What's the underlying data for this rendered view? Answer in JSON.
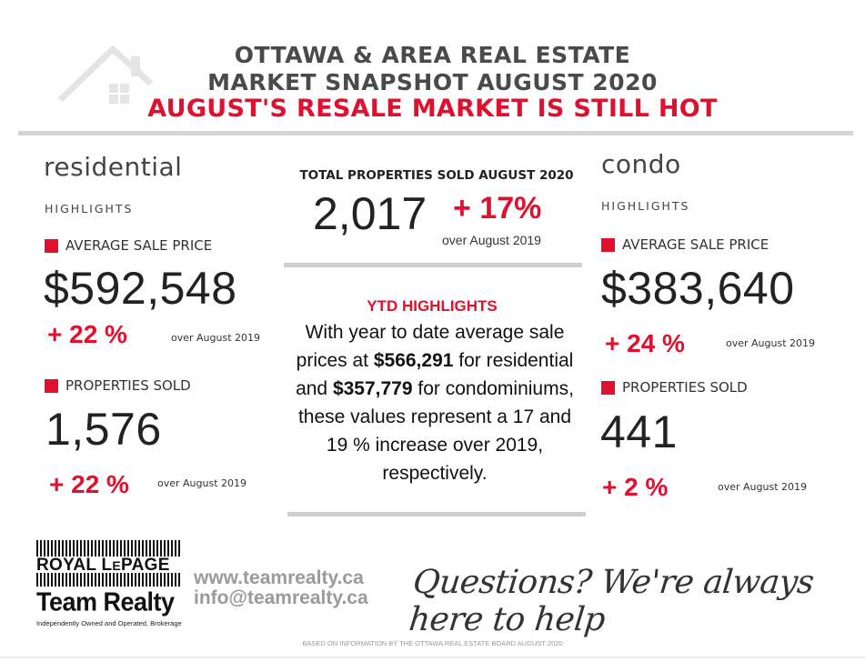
{
  "header": {
    "line1": "OTTAWA & AREA REAL ESTATE",
    "line2": "MARKET SNAPSHOT AUGUST 2020",
    "line3": "AUGUST'S RESALE MARKET IS STILL HOT"
  },
  "residential": {
    "title": "residential",
    "subtitle": "HIGHLIGHTS",
    "avg_label": "AVERAGE SALE PRICE",
    "avg_value": "$592,548",
    "avg_change": "+ 22 %",
    "avg_over": "over August 2019",
    "sold_label": "PROPERTIES SOLD",
    "sold_value": "1,576",
    "sold_change": "+ 22 %",
    "sold_over": "over August 2019"
  },
  "total": {
    "heading": "TOTAL PROPERTIES SOLD AUGUST 2020",
    "value": "2,017",
    "change": "+ 17%",
    "over": "over August 2019"
  },
  "ytd": {
    "heading": "YTD HIGHLIGHTS",
    "text_a": "With year to date average sale prices at ",
    "res_value": "$566,291",
    "text_b": " for residential and ",
    "condo_value": "$357,779",
    "text_c": " for condominiums, these values represent a 17 and 19 % increase over 2019, respectively."
  },
  "condo": {
    "title": "condo",
    "subtitle": "HIGHLIGHTS",
    "avg_label": "AVERAGE SALE PRICE",
    "avg_value": "$383,640",
    "avg_change": "+ 24 %",
    "avg_over": "over  August 2019",
    "sold_label": "PROPERTIES SOLD",
    "sold_value": "441",
    "sold_change": "+ 2 %",
    "sold_over": "over August 2019"
  },
  "footer": {
    "logo_line1_a": "ROYAL L",
    "logo_line1_b": "E",
    "logo_line1_c": "PAGE",
    "logo_line2": "Team Realty",
    "logo_line3": "Independently Owned and Operated, Brokerage",
    "website": "www.teamrealty.ca",
    "email": "info@teamrealty.ca",
    "tagline": "Questions? We're always here to help",
    "source": "BASED ON INFORMATION BY THE OTTAWA REAL ESTATE BOARD AUGUST 2020"
  },
  "colors": {
    "accent": "#e0102e",
    "heading_gray": "#4a4a4a",
    "rule_gray": "#d4d4d4",
    "footer_gray": "#9a9a9a"
  }
}
